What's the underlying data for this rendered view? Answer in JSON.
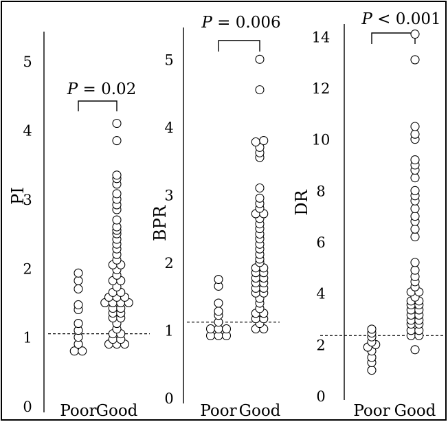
{
  "chart_data": [
    {
      "type": "scatter",
      "ylabel": "PI",
      "categories": [
        "Poor",
        "Good"
      ],
      "ylim": [
        0,
        5.5
      ],
      "yticks": [
        "0",
        "1",
        "2",
        "3",
        "4",
        "5"
      ],
      "reference_line": 1.05,
      "pvalue": {
        "prefix": "P",
        "text": " = 0.02"
      },
      "series": [
        {
          "category": "Poor",
          "values": [
            0.8,
            0.8,
            0.9,
            1.0,
            1.1,
            1.2,
            1.4,
            1.47,
            1.7,
            1.82,
            1.93
          ]
        },
        {
          "category": "Good",
          "values": [
            0.9,
            0.9,
            0.9,
            0.97,
            0.97,
            1.05,
            1.05,
            1.12,
            1.2,
            1.28,
            1.28,
            1.35,
            1.35,
            1.42,
            1.42,
            1.5,
            1.5,
            1.5,
            1.5,
            1.58,
            1.58,
            1.58,
            1.65,
            1.65,
            1.73,
            1.82,
            1.82,
            1.9,
            1.98,
            2.05,
            2.05,
            2.12,
            2.2,
            2.28,
            2.35,
            2.42,
            2.5,
            2.55,
            2.6,
            2.7,
            2.85,
            2.92,
            3.0,
            3.08,
            3.22,
            3.3,
            3.35,
            3.85,
            4.1
          ]
        }
      ]
    },
    {
      "type": "scatter",
      "ylabel": "BPR",
      "categories": [
        "Poor",
        "Good"
      ],
      "ylim": [
        0,
        5.5
      ],
      "yticks": [
        "0",
        "1",
        "2",
        "3",
        "4",
        "5"
      ],
      "reference_line": 1.12,
      "pvalue": {
        "prefix": "P",
        "text": " = 0.006"
      },
      "series": [
        {
          "category": "Poor",
          "values": [
            0.92,
            0.92,
            0.92,
            1.02,
            1.02,
            1.02,
            1.12,
            1.22,
            1.28,
            1.4,
            1.65,
            1.75
          ]
        },
        {
          "category": "Good",
          "values": [
            1.02,
            1.02,
            1.1,
            1.17,
            1.17,
            1.25,
            1.25,
            1.32,
            1.4,
            1.47,
            1.55,
            1.55,
            1.62,
            1.62,
            1.7,
            1.7,
            1.77,
            1.77,
            1.85,
            1.85,
            1.92,
            1.92,
            2.0,
            2.05,
            2.12,
            2.2,
            2.27,
            2.35,
            2.42,
            2.5,
            2.57,
            2.65,
            2.72,
            2.72,
            2.8,
            2.87,
            2.95,
            3.1,
            3.55,
            3.62,
            3.7,
            3.78,
            3.8,
            4.55,
            5.0
          ]
        }
      ]
    },
    {
      "type": "scatter",
      "ylabel": "DR",
      "categories": [
        "Poor",
        "Good"
      ],
      "ylim": [
        0,
        15
      ],
      "yticks": [
        "0",
        "2",
        "4",
        "6",
        "8",
        "10",
        "12",
        "14"
      ],
      "reference_line": 2.35,
      "pvalue": {
        "prefix": "P",
        "text": " < 0.001"
      },
      "series": [
        {
          "category": "Poor",
          "values": [
            1.0,
            1.3,
            1.5,
            1.75,
            1.9,
            2.0,
            2.1,
            2.3,
            2.45,
            2.6
          ]
        },
        {
          "category": "Good",
          "values": [
            1.8,
            2.35,
            2.35,
            2.55,
            2.55,
            2.8,
            2.8,
            2.95,
            2.95,
            3.15,
            3.15,
            3.35,
            3.35,
            3.55,
            3.55,
            3.7,
            3.7,
            3.85,
            4.05,
            4.05,
            4.25,
            4.45,
            4.65,
            4.9,
            5.2,
            6.2,
            6.5,
            6.8,
            7.0,
            7.3,
            7.6,
            7.8,
            8.0,
            8.5,
            8.8,
            9.0,
            9.2,
            10.0,
            10.2,
            10.5,
            13.1,
            14.1
          ]
        }
      ]
    }
  ]
}
